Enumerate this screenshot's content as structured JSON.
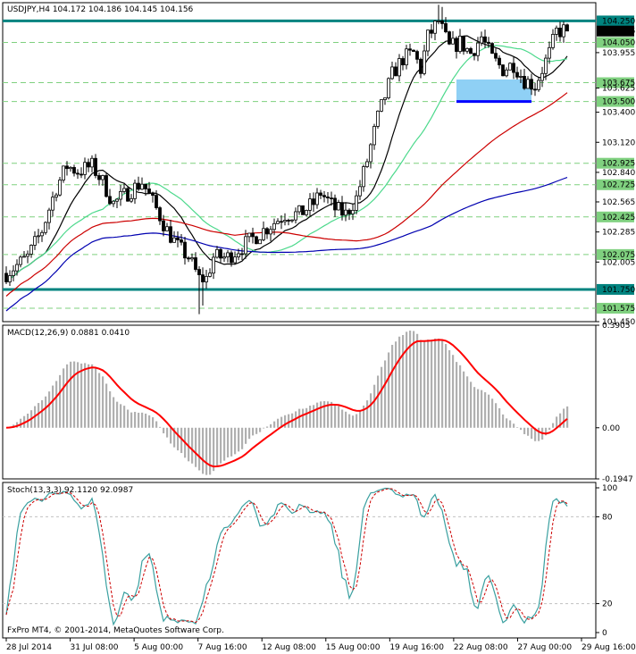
{
  "header": {
    "symbol": "USDJPY,H4",
    "ohlc": "104.172 104.186 104.145 104.156"
  },
  "copyright": "FxPro MT4, © 2001-2014, MetaQuotes Software Corp.",
  "colors": {
    "background": "#ffffff",
    "candle": "#000000",
    "resistance": "#00837f",
    "ma_fast": "#000000",
    "ma_mid": "#4cd98c",
    "ma_slow": "#cc0000",
    "ma_long": "#0000b0",
    "macd_hist": "#b0b0b0",
    "macd_signal": "#ff0000",
    "stoch_main": "#3aa0a0",
    "stoch_signal": "#cc0000",
    "zone": "#8fd0f5",
    "zone_base": "#0000ff"
  },
  "chart_data": [
    {
      "type": "candlestick",
      "title": "USDJPY,H4",
      "ylim": [
        101.45,
        104.42
      ],
      "price_labels": [
        "104.250",
        "104.156",
        "104.050",
        "103.955",
        "103.675",
        "103.625",
        "103.500",
        "103.400",
        "103.120",
        "102.925",
        "102.840",
        "102.725",
        "102.565",
        "102.425",
        "102.285",
        "102.075",
        "102.005",
        "101.750",
        "101.575",
        "101.450"
      ],
      "x_labels": [
        "28 Jul 2014",
        "31 Jul 08:00",
        "5 Aug 00:00",
        "7 Aug 16:00",
        "12 Aug 08:00",
        "15 Aug 00:00",
        "19 Aug 16:00",
        "22 Aug 08:00",
        "27 Aug 00:00",
        "29 Aug 16:00"
      ],
      "horizontal_levels": [
        104.25,
        104.05,
        103.675,
        103.5,
        102.925,
        102.725,
        102.425,
        102.075,
        101.75,
        101.575
      ],
      "support_resistance": [
        104.25,
        101.75
      ],
      "current_price": 104.156,
      "zone": {
        "from": 103.5,
        "to": 103.625
      }
    },
    {
      "type": "line",
      "title": "MACD(12,26,9) 0.0881 0.0410",
      "ylim": [
        -0.1947,
        0.3905
      ],
      "axis_labels": [
        "0.3905",
        "0.00",
        "-0.1947"
      ]
    },
    {
      "type": "line",
      "title": "Stoch(13,3,3) 92.1120 92.0987",
      "ylim": [
        0,
        100
      ],
      "axis_labels": [
        "100",
        "80",
        "20",
        "0"
      ]
    }
  ]
}
